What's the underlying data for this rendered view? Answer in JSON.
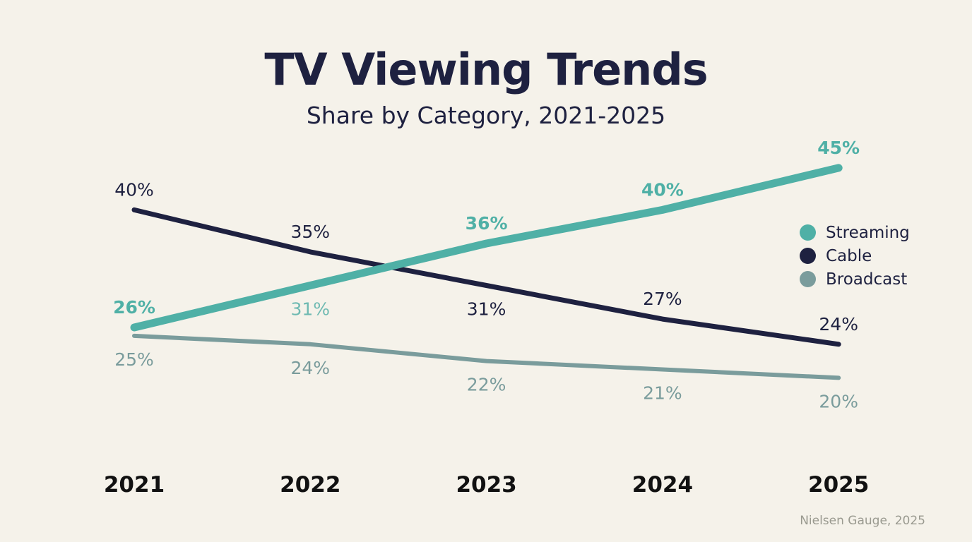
{
  "chart_data": {
    "type": "line",
    "title": "TV Viewing Trends",
    "subtitle": "Share by Category, 2021-2025",
    "categories": [
      "2021",
      "2022",
      "2023",
      "2024",
      "2025"
    ],
    "series": [
      {
        "name": "Streaming",
        "color": "#4fb0a6",
        "values": [
          26,
          31,
          36,
          40,
          45
        ],
        "labels": [
          "26%",
          "31%",
          "36%",
          "40%",
          "45%"
        ],
        "label_placement": [
          "above",
          "below",
          "above",
          "above",
          "above"
        ]
      },
      {
        "name": "Cable",
        "color": "#1e2140",
        "values": [
          40,
          35,
          31,
          27,
          24
        ],
        "labels": [
          "40%",
          "35%",
          "31%",
          "27%",
          "24%"
        ],
        "label_placement": [
          "above",
          "above",
          "below",
          "above",
          "above"
        ]
      },
      {
        "name": "Broadcast",
        "color": "#7a9c9c",
        "values": [
          25,
          24,
          22,
          21,
          20
        ],
        "labels": [
          "25%",
          "24%",
          "22%",
          "21%",
          "20%"
        ],
        "label_placement": [
          "below",
          "below",
          "below",
          "below",
          "below"
        ]
      }
    ],
    "grid": false,
    "legend": "right",
    "source": "Nielsen Gauge, 2025"
  }
}
